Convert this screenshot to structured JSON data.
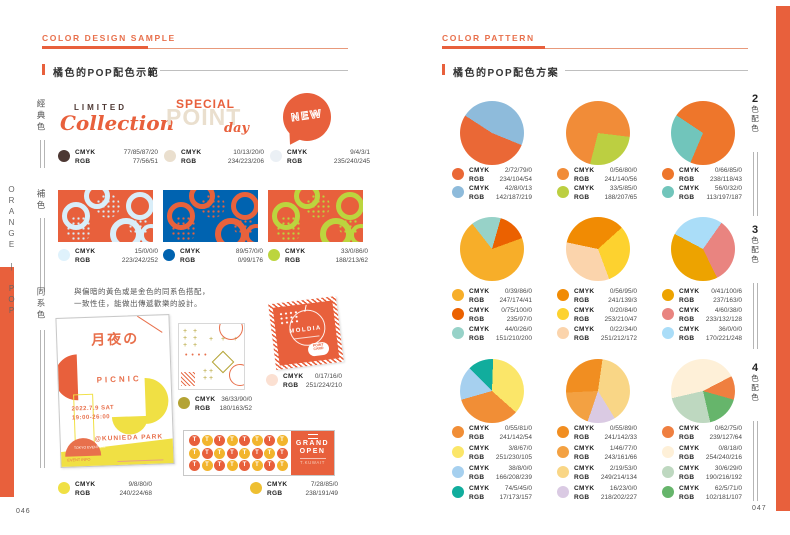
{
  "labels": {
    "cmyk": "CMYK",
    "rgb": "RGB"
  },
  "page_left": {
    "page_number": "046",
    "header": "COLOR DESIGN SAMPLE",
    "section_title": "橘色的POP配色示範",
    "side_text": "ORANGE | POP",
    "group_labels": [
      "經典色",
      "補色",
      "同系色"
    ],
    "desc_line1": "與偏暗的黃色或是金色的同系色搭配，",
    "desc_line2": "一致性佳，能做出傳遞歡樂的設計。",
    "samples": {
      "limited_line1": "LIMITED",
      "limited_line2": "Collection",
      "special_back": "POINT",
      "special_front": "SPECIAL",
      "special_script": "day",
      "new_text": "NEW"
    },
    "poster": {
      "title": "月夜の",
      "subtitle": "PICNIC",
      "date": "2022.7.9 SAT",
      "time": "19:00-26:00",
      "place": "@KUNIEDA PARK",
      "footer_co": "TOKYO EVENT CO.",
      "footer_info": "EVENT INFO"
    },
    "moldia": {
      "brand": "MOLDIA",
      "bubble_line1": "POINT",
      "bubble_line2": "CARD"
    },
    "grand": {
      "line1": "GRAND",
      "line2": "OPEN",
      "sub": "T.KUWAIT",
      "tile": "T",
      "tile_orange": "#E8603C",
      "tile_yellow": "#F2B52D"
    },
    "patterns": [
      {
        "bg": "#E8603C",
        "accent": "#D9EEF9"
      },
      {
        "bg": "#0063B0",
        "accent": "#E8623C"
      },
      {
        "bg": "#E8603C",
        "accent": "#BCD53E"
      }
    ],
    "swatches": [
      {
        "hex": "#4D3833",
        "cmyk": "77/85/87/20",
        "rgb": "77/56/51"
      },
      {
        "hex": "#EADFCE",
        "cmyk": "10/13/20/0",
        "rgb": "234/223/206"
      },
      {
        "hex": "#EBF0F5",
        "cmyk": "9/4/3/1",
        "rgb": "235/240/245"
      },
      {
        "hex": "#DFF2FC",
        "cmyk": "15/0/0/0",
        "rgb": "223/242/252"
      },
      {
        "hex": "#0063B0",
        "cmyk": "89/57/0/0",
        "rgb": "0/99/176"
      },
      {
        "hex": "#BCD53E",
        "cmyk": "33/0/86/0",
        "rgb": "188/213/62"
      },
      {
        "hex": "#B4A334",
        "cmyk": "36/33/90/0",
        "rgb": "180/163/52"
      },
      {
        "hex": "#FBE0D2",
        "cmyk": "0/17/16/0",
        "rgb": "251/224/210"
      },
      {
        "hex": "#F0E044",
        "cmyk": "9/8/80/0",
        "rgb": "240/224/68"
      },
      {
        "hex": "#EEBF31",
        "cmyk": "7/28/85/0",
        "rgb": "238/191/49"
      }
    ]
  },
  "page_right": {
    "page_number": "047",
    "header": "COLOR PATTERN",
    "section_title": "橘色的POP配色方案",
    "row_labels": [
      {
        "num": "2",
        "suffix": "色配色"
      },
      {
        "num": "3",
        "suffix": "色配色"
      },
      {
        "num": "4",
        "suffix": "色配色"
      }
    ]
  },
  "chart_data": [
    {
      "type": "pie",
      "group": "2色配色",
      "start": -57,
      "draw": [
        1,
        0
      ],
      "slices": [
        {
          "cmyk": "2/72/79/0",
          "rgb": "234/104/54",
          "hex": "#EA6836",
          "frac": 0.53
        },
        {
          "cmyk": "42/8/0/13",
          "rgb": "142/187/219",
          "hex": "#8EBBDB",
          "frac": 0.47
        }
      ]
    },
    {
      "type": "pie",
      "group": "2色配色",
      "start": 97,
      "draw": [
        1,
        0
      ],
      "slices": [
        {
          "cmyk": "0/56/80/0",
          "rgb": "241/140/56",
          "hex": "#F18C38",
          "frac": 0.73
        },
        {
          "cmyk": "33/5/85/0",
          "rgb": "188/207/65",
          "hex": "#BCCF41",
          "frac": 0.27
        }
      ]
    },
    {
      "type": "pie",
      "group": "2色配色",
      "start": 203,
      "draw": [
        1,
        0
      ],
      "slices": [
        {
          "cmyk": "0/66/85/0",
          "rgb": "238/118/43",
          "hex": "#EE762B",
          "frac": 0.72
        },
        {
          "cmyk": "56/0/32/0",
          "rgb": "113/197/187",
          "hex": "#71C5BB",
          "frac": 0.28
        }
      ]
    },
    {
      "type": "pie",
      "group": "3色配色",
      "start": -38,
      "draw": [
        2,
        1,
        0
      ],
      "slices": [
        {
          "cmyk": "0/39/86/0",
          "rgb": "247/174/41",
          "hex": "#F7AE29",
          "frac": 0.7
        },
        {
          "cmyk": "0/75/100/0",
          "rgb": "235/97/0",
          "hex": "#EB6100",
          "frac": 0.15
        },
        {
          "cmyk": "44/0/26/0",
          "rgb": "151/210/200",
          "hex": "#97D2C8",
          "frac": 0.15
        }
      ]
    },
    {
      "type": "pie",
      "group": "3色配色",
      "start": -78,
      "draw": [
        0,
        1,
        2
      ],
      "slices": [
        {
          "cmyk": "0/56/95/0",
          "rgb": "241/139/3",
          "hex": "#F18B03",
          "frac": 0.35
        },
        {
          "cmyk": "0/20/84/0",
          "rgb": "253/210/47",
          "hex": "#FDD22F",
          "frac": 0.31
        },
        {
          "cmyk": "0/22/34/0",
          "rgb": "251/212/172",
          "hex": "#FBD4AC",
          "frac": 0.34
        }
      ]
    },
    {
      "type": "pie",
      "group": "3色配色",
      "start": -62,
      "draw": [
        2,
        1,
        0
      ],
      "slices": [
        {
          "cmyk": "0/41/100/6",
          "rgb": "237/163/0",
          "hex": "#EDA300",
          "frac": 0.4
        },
        {
          "cmyk": "4/60/38/0",
          "rgb": "233/132/128",
          "hex": "#E98480",
          "frac": 0.33
        },
        {
          "cmyk": "36/0/0/0",
          "rgb": "170/221/248",
          "hex": "#AADDF8",
          "frac": 0.27
        }
      ]
    },
    {
      "type": "pie",
      "group": "4色配色",
      "start": 2,
      "draw": [
        1,
        0,
        2,
        3
      ],
      "slices": [
        {
          "cmyk": "0/55/81/0",
          "rgb": "241/142/54",
          "hex": "#F18E36",
          "frac": 0.34
        },
        {
          "cmyk": "3/8/67/0",
          "rgb": "251/230/105",
          "hex": "#FBE669",
          "frac": 0.36
        },
        {
          "cmyk": "38/8/0/0",
          "rgb": "166/208/239",
          "hex": "#A6D0EF",
          "frac": 0.17
        },
        {
          "cmyk": "74/5/45/0",
          "rgb": "17/173/157",
          "hex": "#11AD9D",
          "frac": 0.13
        }
      ]
    },
    {
      "type": "pie",
      "group": "4色配色",
      "start": 8,
      "draw": [
        2,
        3,
        1,
        0
      ],
      "slices": [
        {
          "cmyk": "0/55/89/0",
          "rgb": "241/142/33",
          "hex": "#F18E21",
          "frac": 0.28
        },
        {
          "cmyk": "1/46/77/0",
          "rgb": "243/161/66",
          "hex": "#F3A142",
          "frac": 0.19
        },
        {
          "cmyk": "2/19/53/0",
          "rgb": "249/214/134",
          "hex": "#F9D686",
          "frac": 0.39
        },
        {
          "cmyk": "16/23/0/0",
          "rgb": "218/202/227",
          "hex": "#DACAE3",
          "frac": 0.14
        }
      ]
    },
    {
      "type": "pie",
      "group": "4色配色",
      "start": -103,
      "draw": [
        1,
        0,
        3,
        2
      ],
      "slices": [
        {
          "cmyk": "0/62/75/0",
          "rgb": "239/127/64",
          "hex": "#EF7F40",
          "frac": 0.12
        },
        {
          "cmyk": "0/8/18/0",
          "rgb": "254/240/216",
          "hex": "#FEF0D8",
          "frac": 0.46
        },
        {
          "cmyk": "30/6/29/0",
          "rgb": "190/216/192",
          "hex": "#BED8C0",
          "frac": 0.25
        },
        {
          "cmyk": "62/5/71/0",
          "rgb": "102/181/107",
          "hex": "#66B56B",
          "frac": 0.17
        }
      ]
    }
  ]
}
